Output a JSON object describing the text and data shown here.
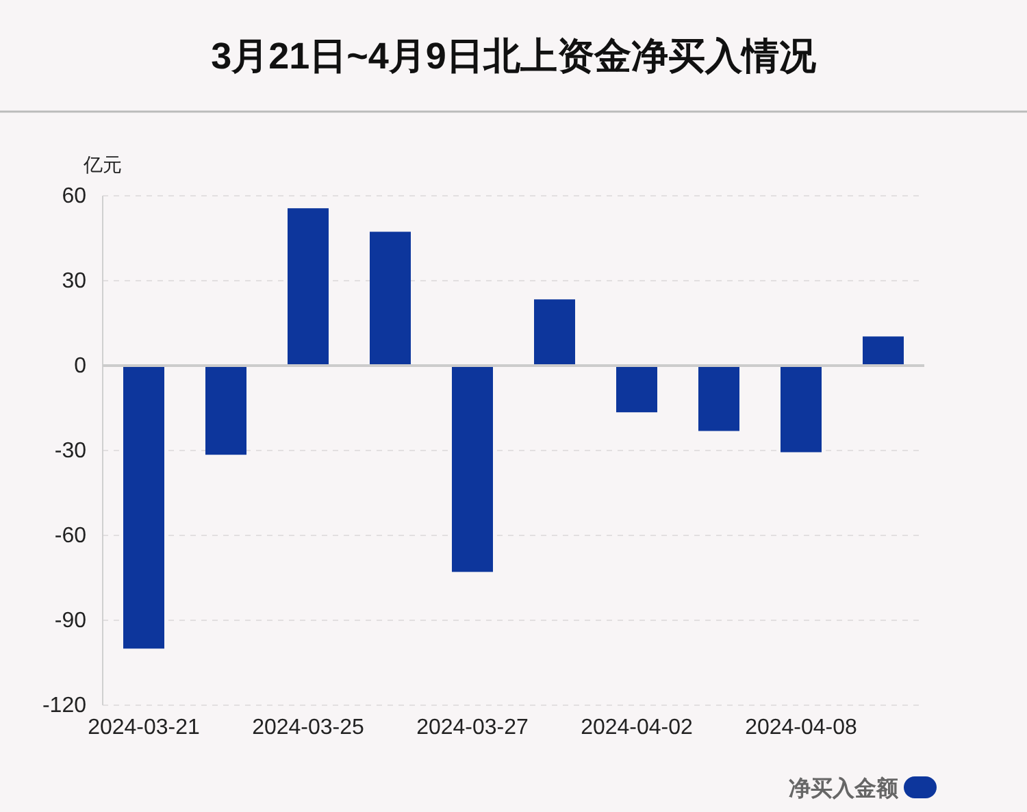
{
  "chart_data": {
    "type": "bar",
    "title": "3月21日~4月9日北上资金净买入情况",
    "ylabel": "亿元",
    "categories": [
      "2024-03-21",
      null,
      "2024-03-25",
      null,
      "2024-03-27",
      null,
      "2024-04-02",
      null,
      "2024-04-08",
      null
    ],
    "series": [
      {
        "name": "净买入金额",
        "color": "#0d369c",
        "values": [
          -100,
          -31.5,
          55.6,
          47.3,
          -72.9,
          23.4,
          -16.5,
          -23.1,
          -30.6,
          10.3
        ]
      }
    ],
    "ylim": [
      -120,
      60
    ],
    "yticks": [
      -120,
      -90,
      -60,
      -30,
      0,
      30,
      60
    ],
    "grid": "y",
    "legend": "bottom right"
  }
}
